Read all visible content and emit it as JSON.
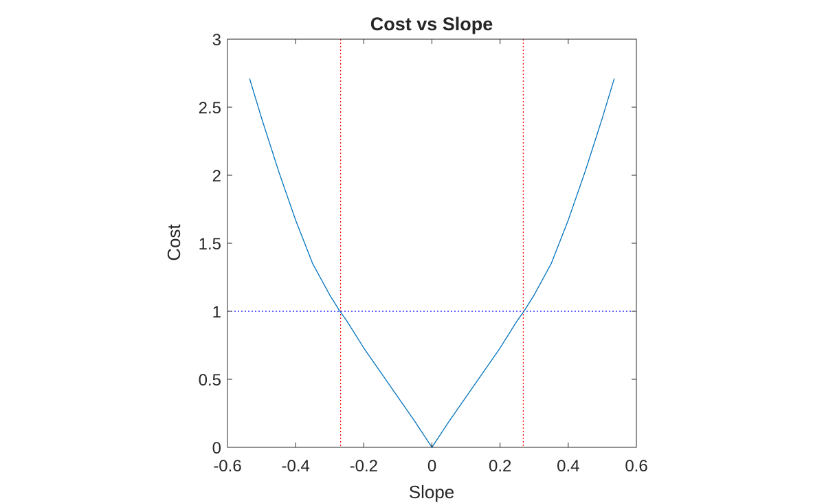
{
  "chart_data": {
    "type": "line",
    "title": "Cost vs Slope",
    "xlabel": "Slope",
    "ylabel": "Cost",
    "xlim": [
      -0.6,
      0.6
    ],
    "ylim": [
      0,
      3
    ],
    "xticks": [
      -0.6,
      -0.4,
      -0.2,
      0,
      0.2,
      0.4,
      0.6
    ],
    "xtick_labels": [
      "-0.6",
      "-0.4",
      "-0.2",
      "0",
      "0.2",
      "0.4",
      "0.6"
    ],
    "yticks": [
      0,
      0.5,
      1,
      1.5,
      2,
      2.5,
      3
    ],
    "ytick_labels": [
      "0",
      "0.5",
      "1",
      "1.5",
      "2",
      "2.5",
      "3"
    ],
    "grid": false,
    "legend": "none",
    "series": [
      {
        "color": "#0072BD",
        "style": "solid",
        "x": [
          -0.535,
          -0.5,
          -0.45,
          -0.4,
          -0.35,
          -0.3,
          -0.27,
          -0.25,
          -0.2,
          -0.15,
          -0.1,
          -0.05,
          0,
          0.05,
          0.1,
          0.15,
          0.2,
          0.25,
          0.27,
          0.3,
          0.35,
          0.4,
          0.45,
          0.5,
          0.535
        ],
        "y": [
          2.71,
          2.42,
          2.03,
          1.67,
          1.35,
          1.12,
          1.0,
          0.93,
          0.73,
          0.55,
          0.37,
          0.19,
          0.0,
          0.19,
          0.37,
          0.55,
          0.73,
          0.93,
          1.0,
          1.12,
          1.35,
          1.67,
          2.03,
          2.42,
          2.71
        ]
      }
    ],
    "reference_lines": [
      {
        "orientation": "horizontal",
        "value": 1,
        "color": "#0000FF",
        "style": "dotted"
      },
      {
        "orientation": "vertical",
        "value": -0.268,
        "color": "#FF0000",
        "style": "dotted"
      },
      {
        "orientation": "vertical",
        "value": 0.268,
        "color": "#FF0000",
        "style": "dotted"
      }
    ]
  }
}
